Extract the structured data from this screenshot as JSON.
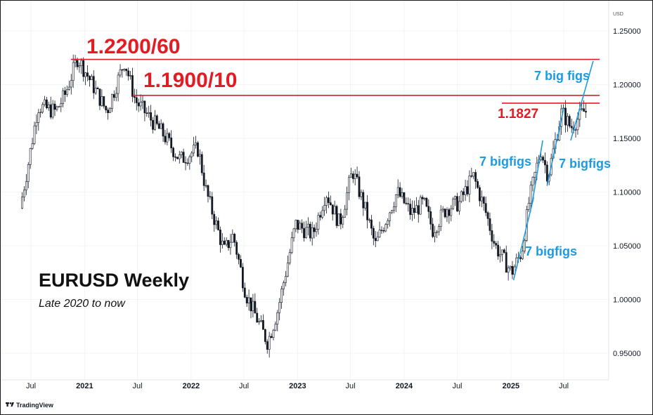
{
  "chart_data": {
    "type": "candlestick",
    "title": "EURUSD Weekly",
    "subtitle": "Late 2020 to now",
    "y_unit": "USD",
    "ylim": [
      0.93,
      1.265
    ],
    "y_ticks": [
      "1.25000",
      "1.20000",
      "1.15000",
      "1.10000",
      "1.05000",
      "1.00000",
      "0.95000"
    ],
    "x_ticks": [
      {
        "label": "Jul",
        "bold": false
      },
      {
        "label": "2021",
        "bold": true
      },
      {
        "label": "Jul",
        "bold": false
      },
      {
        "label": "2022",
        "bold": true
      },
      {
        "label": "Jul",
        "bold": false
      },
      {
        "label": "2023",
        "bold": true
      },
      {
        "label": "Jul",
        "bold": false
      },
      {
        "label": "2024",
        "bold": true
      },
      {
        "label": "Jul",
        "bold": false
      },
      {
        "label": "2025",
        "bold": true
      },
      {
        "label": "Jul",
        "bold": false
      }
    ],
    "price_path": [
      [
        "2020-06-01",
        1.085
      ],
      [
        "2020-07-01",
        1.13
      ],
      [
        "2020-08-01",
        1.18
      ],
      [
        "2020-10-01",
        1.175
      ],
      [
        "2020-11-01",
        1.19
      ],
      [
        "2020-12-15",
        1.225
      ],
      [
        "2021-01-15",
        1.21
      ],
      [
        "2021-03-25",
        1.175
      ],
      [
        "2021-05-25",
        1.222
      ],
      [
        "2021-07-01",
        1.185
      ],
      [
        "2021-10-01",
        1.155
      ],
      [
        "2021-12-01",
        1.13
      ],
      [
        "2022-02-01",
        1.14
      ],
      [
        "2022-03-01",
        1.1
      ],
      [
        "2022-05-01",
        1.045
      ],
      [
        "2022-06-01",
        1.06
      ],
      [
        "2022-07-15",
        1.005
      ],
      [
        "2022-09-27",
        0.96
      ],
      [
        "2022-11-01",
        0.99
      ],
      [
        "2023-01-01",
        1.07
      ],
      [
        "2023-03-01",
        1.06
      ],
      [
        "2023-04-15",
        1.1
      ],
      [
        "2023-06-01",
        1.07
      ],
      [
        "2023-07-15",
        1.12
      ],
      [
        "2023-09-01",
        1.08
      ],
      [
        "2023-10-01",
        1.05
      ],
      [
        "2023-12-15",
        1.1
      ],
      [
        "2024-02-01",
        1.08
      ],
      [
        "2024-03-15",
        1.09
      ],
      [
        "2024-04-15",
        1.065
      ],
      [
        "2024-06-01",
        1.085
      ],
      [
        "2024-07-15",
        1.09
      ],
      [
        "2024-09-01",
        1.115
      ],
      [
        "2024-10-15",
        1.08
      ],
      [
        "2024-11-15",
        1.05
      ],
      [
        "2025-01-10",
        1.025
      ],
      [
        "2025-02-15",
        1.045
      ],
      [
        "2025-03-10",
        1.09
      ],
      [
        "2025-04-20",
        1.14
      ],
      [
        "2025-05-15",
        1.115
      ],
      [
        "2025-07-01",
        1.175
      ],
      [
        "2025-08-01",
        1.16
      ],
      [
        "2025-09-15",
        1.175
      ]
    ],
    "hlines": [
      {
        "y": 1.2235,
        "from": "2020-11-15",
        "to": "2025-11-01",
        "color": "#e31b23"
      },
      {
        "y": 1.19,
        "from": "2021-06-15",
        "to": "2025-11-01",
        "color": "#e31b23"
      },
      {
        "y": 1.1827,
        "from": "2024-12-01",
        "to": "2025-11-01",
        "color": "#e31b23"
      }
    ],
    "trendlines": [
      {
        "from": [
          "2025-01-10",
          1.018
        ],
        "to": [
          "2025-03-20",
          1.095
        ],
        "color": "#1e9be0"
      },
      {
        "from": [
          "2025-03-15",
          1.09
        ],
        "to": [
          "2025-04-20",
          1.148
        ],
        "color": "#1e9be0"
      },
      {
        "from": [
          "2025-05-05",
          1.106
        ],
        "to": [
          "2025-07-01",
          1.178
        ],
        "color": "#1e9be0"
      },
      {
        "from": [
          "2025-07-25",
          1.148
        ],
        "to": [
          "2025-10-10",
          1.222
        ],
        "color": "#1e9be0"
      }
    ],
    "annotations": [
      {
        "text": "1.2200/60",
        "color": "red"
      },
      {
        "text": "1.1900/10",
        "color": "red"
      },
      {
        "text": "1.1827",
        "color": "red"
      },
      {
        "text": "7 big figs",
        "color": "blue"
      },
      {
        "text": "7 bigfigs",
        "color": "blue"
      },
      {
        "text": "7 bigfigs",
        "color": "blue"
      },
      {
        "text": "7 bigfigs",
        "color": "blue"
      }
    ]
  },
  "branding": {
    "logo_text": "TradingView"
  },
  "colors": {
    "red": "#e31b23",
    "blue": "#1e9be0",
    "candle": "#131722",
    "grid": "#f0f3fa"
  }
}
